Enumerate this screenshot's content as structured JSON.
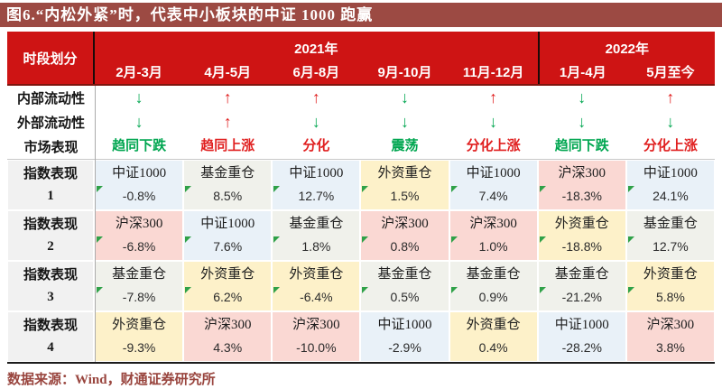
{
  "chart_data": {
    "type": "table",
    "title": "图6.“内松外紧”时，代表中小板块的中证 1000 跑赢",
    "source_note": "数据来源：Wind，财通证券研究所",
    "corner_label": "时段划分",
    "year_groups": [
      {
        "label": "2021年",
        "span": 5
      },
      {
        "label": "2022年",
        "span": 2
      }
    ],
    "periods": [
      "2月-3月",
      "4月-5月",
      "6月-8月",
      "9月-10月",
      "11月-12月",
      "1月-4月",
      "5月至今"
    ],
    "arrow_glyphs": {
      "up": "↑",
      "down": "↓"
    },
    "rows": {
      "internal_liquidity": {
        "label": "内部流动性",
        "arrows": [
          "down",
          "up",
          "up",
          "down",
          "up",
          "down",
          "up"
        ]
      },
      "external_liquidity": {
        "label": "外部流动性",
        "arrows": [
          "down",
          "up",
          "down",
          "down",
          "down",
          "down",
          "down"
        ]
      },
      "market": {
        "label": "市场表现",
        "cells": [
          {
            "text": "趋同下跌",
            "tone": "green"
          },
          {
            "text": "趋同上涨",
            "tone": "red"
          },
          {
            "text": "分化",
            "tone": "red"
          },
          {
            "text": "震荡",
            "tone": "green"
          },
          {
            "text": "分化上涨",
            "tone": "red"
          },
          {
            "text": "趋同下跌",
            "tone": "green"
          },
          {
            "text": "分化上涨",
            "tone": "red"
          }
        ]
      },
      "index_ranks": [
        {
          "label": "指数表现",
          "rank": "1",
          "cells": [
            {
              "name": "中证1000",
              "value": "-0.8%",
              "cat": "zz1000",
              "flag": true
            },
            {
              "name": "基金重仓",
              "value": "8.5%",
              "cat": "fund",
              "flag": true
            },
            {
              "name": "中证1000",
              "value": "12.7%",
              "cat": "zz1000",
              "flag": true
            },
            {
              "name": "外资重仓",
              "value": "1.5%",
              "cat": "foreign",
              "flag": true
            },
            {
              "name": "中证1000",
              "value": "7.4%",
              "cat": "zz1000",
              "flag": true
            },
            {
              "name": "沪深300",
              "value": "-18.3%",
              "cat": "hs300",
              "flag": true
            },
            {
              "name": "中证1000",
              "value": "24.1%",
              "cat": "zz1000",
              "flag": true
            }
          ]
        },
        {
          "label": "指数表现",
          "rank": "2",
          "cells": [
            {
              "name": "沪深300",
              "value": "-6.8%",
              "cat": "hs300",
              "flag": true
            },
            {
              "name": "中证1000",
              "value": "7.6%",
              "cat": "zz1000",
              "flag": true
            },
            {
              "name": "基金重仓",
              "value": "1.8%",
              "cat": "fund",
              "flag": true
            },
            {
              "name": "沪深300",
              "value": "0.8%",
              "cat": "hs300",
              "flag": true
            },
            {
              "name": "沪深300",
              "value": "1.0%",
              "cat": "hs300",
              "flag": true
            },
            {
              "name": "外资重仓",
              "value": "-18.8%",
              "cat": "foreign",
              "flag": true
            },
            {
              "name": "基金重仓",
              "value": "12.7%",
              "cat": "fund",
              "flag": true
            }
          ]
        },
        {
          "label": "指数表现",
          "rank": "3",
          "cells": [
            {
              "name": "基金重仓",
              "value": "-7.8%",
              "cat": "fund",
              "flag": true
            },
            {
              "name": "外资重仓",
              "value": "6.2%",
              "cat": "foreign",
              "flag": true
            },
            {
              "name": "外资重仓",
              "value": "-6.4%",
              "cat": "foreign",
              "flag": true
            },
            {
              "name": "基金重仓",
              "value": "0.5%",
              "cat": "fund",
              "flag": true
            },
            {
              "name": "基金重仓",
              "value": "0.9%",
              "cat": "fund",
              "flag": true
            },
            {
              "name": "基金重仓",
              "value": "-21.2%",
              "cat": "fund",
              "flag": true
            },
            {
              "name": "外资重仓",
              "value": "5.8%",
              "cat": "foreign",
              "flag": true
            }
          ]
        },
        {
          "label": "指数表现",
          "rank": "4",
          "cells": [
            {
              "name": "外资重仓",
              "value": "-9.3%",
              "cat": "foreign",
              "flag": false
            },
            {
              "name": "沪深300",
              "value": "4.3%",
              "cat": "hs300",
              "flag": false
            },
            {
              "name": "沪深300",
              "value": "-10.0%",
              "cat": "hs300",
              "flag": false
            },
            {
              "name": "中证1000",
              "value": "-2.9%",
              "cat": "zz1000",
              "flag": false
            },
            {
              "name": "外资重仓",
              "value": "0.4%",
              "cat": "foreign",
              "flag": false
            },
            {
              "name": "中证1000",
              "value": "-28.2%",
              "cat": "zz1000",
              "flag": false
            },
            {
              "name": "沪深300",
              "value": "3.8%",
              "cat": "hs300",
              "flag": false
            }
          ]
        }
      ]
    }
  },
  "colors": {
    "title_bar": "#9C4A43",
    "header_red": "#CE1414",
    "header_border": "#7F150E",
    "divider_dark": "#1A0A08",
    "green": "#00A650",
    "red": "#E01F1F",
    "triangle_green": "#2FA148",
    "c_zz1000": "#E9F1F8",
    "c_hs300": "#FAD8D3",
    "c_foreign": "#FDF1C9",
    "c_fund": "#F0F1EB",
    "label_bg": "#F1F1F1",
    "maroon_text": "#99453E"
  }
}
